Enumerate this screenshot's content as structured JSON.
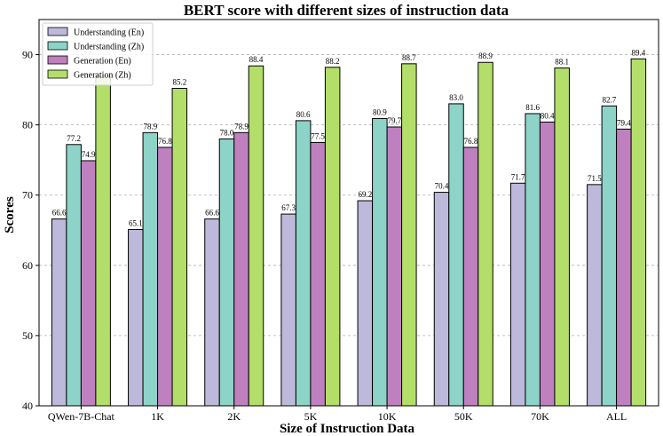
{
  "chart_data": {
    "type": "bar",
    "title": "BERT score with different sizes of instruction data",
    "xlabel": "Size of Instruction Data",
    "ylabel": "Scores",
    "ylim": [
      40,
      95
    ],
    "yticks": [
      40,
      50,
      60,
      70,
      80,
      90
    ],
    "grid": "horizontal dashed",
    "legend_position": "top-left",
    "categories": [
      "QWen-7B-Chat",
      "1K",
      "2K",
      "5K",
      "10K",
      "50K",
      "70K",
      "ALL"
    ],
    "series": [
      {
        "name": "Understanding (En)",
        "color": "#bcb9da",
        "values": [
          66.6,
          65.1,
          66.6,
          67.3,
          69.2,
          70.4,
          71.7,
          71.5
        ],
        "labels": [
          "66.6",
          "65.1",
          "66.6",
          "67.3",
          "69.2",
          "70.4",
          "71.7",
          "71.5"
        ]
      },
      {
        "name": "Understanding (Zh)",
        "color": "#8dd3c7",
        "values": [
          77.2,
          78.9,
          78.0,
          80.6,
          80.9,
          83.0,
          81.6,
          82.7
        ],
        "labels": [
          "77.2",
          "78.9",
          "78.0",
          "80.6",
          "80.9",
          "83.0",
          "81.6",
          "82.7"
        ]
      },
      {
        "name": "Generation (En)",
        "color": "#bf80bf",
        "values": [
          74.9,
          76.8,
          78.9,
          77.5,
          79.7,
          76.8,
          80.4,
          79.4
        ],
        "labels": [
          "74.9",
          "76.8",
          "78.9",
          "77.5",
          "79.7",
          "76.8",
          "80.4",
          "79.4"
        ]
      },
      {
        "name": "Generation (Zh)",
        "color": "#b3de69",
        "values": [
          86.9,
          85.2,
          88.4,
          88.2,
          88.7,
          88.9,
          88.1,
          89.4
        ],
        "labels": [
          "",
          "85.2",
          "88.4",
          "88.2",
          "88.7",
          "88.9",
          "88.1",
          "89.4"
        ]
      }
    ]
  }
}
